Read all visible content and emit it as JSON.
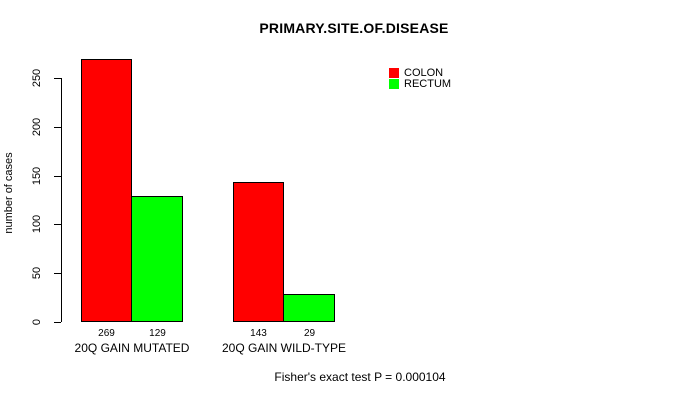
{
  "chart_data": {
    "type": "bar",
    "title": "PRIMARY.SITE.OF.DISEASE",
    "categories": [
      "20Q GAIN MUTATED",
      "20Q GAIN WILD-TYPE"
    ],
    "series": [
      {
        "name": "COLON",
        "color": "#ff0000",
        "values": [
          269,
          143
        ]
      },
      {
        "name": "RECTUM",
        "color": "#00ff00",
        "values": [
          129,
          29
        ]
      }
    ],
    "xlabel": "",
    "ylabel": "number of cases",
    "ylim": [
      0,
      250
    ],
    "yticks": [
      0,
      50,
      100,
      150,
      200,
      250
    ],
    "bar_value_labels": [
      [
        269,
        143
      ],
      [
        129,
        29
      ]
    ],
    "grid": false,
    "legend_position": "top-right",
    "annotation": "Fisher's exact test P = 0.000104"
  }
}
